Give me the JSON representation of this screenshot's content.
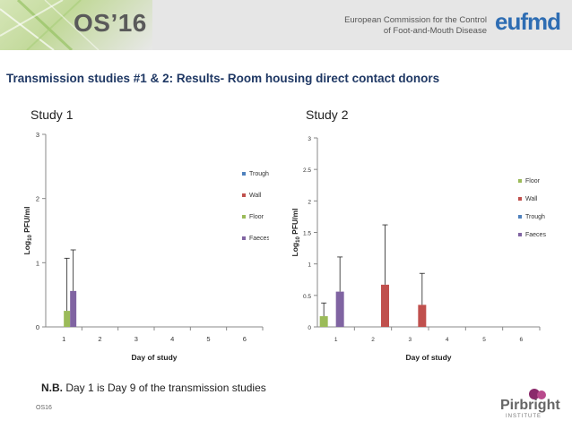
{
  "header": {
    "event": "OS’16",
    "org_line1": "European Commission for the Control",
    "org_line2": "of Foot-and-Mouth Disease",
    "logo": "eufmd"
  },
  "slide_title": "Transmission studies #1 & 2: Results- Room housing direct contact donors",
  "note_bold": "N.B.",
  "note_rest": " Day 1 is Day 9 of the transmission studies",
  "footer_left": "OS16",
  "footer_logo_name": "Pirbright",
  "footer_logo_sub": "INSTITUTE",
  "colors": {
    "Trough": "#4f81bd",
    "Wall": "#c0504d",
    "Floor": "#9bbb59",
    "Faeces": "#8064a2"
  },
  "chart_data": [
    {
      "type": "bar",
      "title": "Study 1",
      "categories": [
        "1",
        "2",
        "3",
        "4",
        "5",
        "6"
      ],
      "xlabel": "Day of study",
      "ylabel_prefix": "Log",
      "ylabel_sub": "10",
      "ylabel_suffix": " PFU/ml",
      "ylim": [
        0,
        3
      ],
      "yticks": [
        0,
        1,
        2,
        3
      ],
      "ytick_labels": [
        "0",
        "1",
        "2",
        "3"
      ],
      "legend": [
        "Trough",
        "Wall",
        "Floor",
        "Faeces"
      ],
      "series_order": [
        "Trough",
        "Wall",
        "Floor",
        "Faeces"
      ],
      "series": [
        {
          "name": "Trough",
          "values": [
            0,
            0,
            0,
            0,
            0,
            0
          ],
          "errors": [
            0,
            0,
            0,
            0,
            0,
            0
          ]
        },
        {
          "name": "Wall",
          "values": [
            0,
            0,
            0,
            0,
            0,
            0
          ],
          "errors": [
            0,
            0,
            0,
            0,
            0,
            0
          ]
        },
        {
          "name": "Floor",
          "values": [
            0.25,
            0,
            0,
            0,
            0,
            0
          ],
          "errors": [
            0.82,
            0,
            0,
            0,
            0,
            0
          ]
        },
        {
          "name": "Faeces",
          "values": [
            0.56,
            0,
            0,
            0,
            0,
            0
          ],
          "errors": [
            0.64,
            0,
            0,
            0,
            0,
            0
          ]
        }
      ]
    },
    {
      "type": "bar",
      "title": "Study 2",
      "categories": [
        "1",
        "2",
        "3",
        "4",
        "5",
        "6"
      ],
      "xlabel": "Day of study",
      "ylabel_prefix": "Log",
      "ylabel_sub": "10",
      "ylabel_suffix": " PFU/ml",
      "ylim": [
        0,
        3
      ],
      "yticks": [
        0,
        0.5,
        1,
        1.5,
        2,
        2.5,
        3
      ],
      "ytick_labels": [
        "0",
        "0.5",
        "1",
        "1.5",
        "2",
        "2.5",
        "3"
      ],
      "legend": [
        "Floor",
        "Wall",
        "Trough",
        "Faeces"
      ],
      "series_order": [
        "Floor",
        "Trough",
        "Faeces",
        "Wall"
      ],
      "series": [
        {
          "name": "Floor",
          "values": [
            0.17,
            0,
            0,
            0,
            0,
            0
          ],
          "errors": [
            0.21,
            0,
            0,
            0,
            0,
            0
          ]
        },
        {
          "name": "Trough",
          "values": [
            0,
            0,
            0,
            0,
            0,
            0
          ],
          "errors": [
            0,
            0,
            0,
            0,
            0,
            0
          ]
        },
        {
          "name": "Faeces",
          "values": [
            0.56,
            0,
            0,
            0,
            0,
            0
          ],
          "errors": [
            0.55,
            0,
            0,
            0,
            0,
            0
          ]
        },
        {
          "name": "Wall",
          "values": [
            0,
            0.67,
            0.35,
            0,
            0,
            0
          ],
          "errors": [
            0,
            0.95,
            0.5,
            0,
            0,
            0
          ]
        }
      ]
    }
  ]
}
